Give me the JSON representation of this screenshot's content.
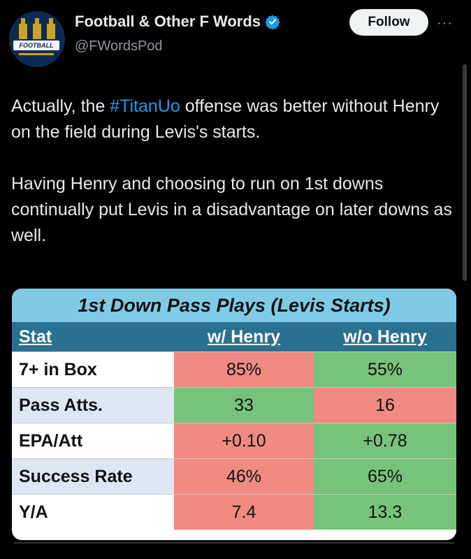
{
  "header": {
    "display_name": "Football & Other F Words",
    "handle": "@FWordsPod",
    "follow_label": "Follow",
    "more_label": "···",
    "avatar_banner": "FOOTBALL"
  },
  "tweet": {
    "line1_pre": "Actually, the ",
    "hashtag": "#TitanUo",
    "line1_post": " offense was better without Henry on the field during Levis's starts.",
    "paragraph2": "Having Henry and choosing to run on 1st downs continually put Levis in a disadvantage on later downs as well."
  },
  "table": {
    "title": "1st Down Pass Plays (Levis Starts)",
    "headers": [
      "Stat",
      "w/ Henry",
      "w/o Henry"
    ],
    "rows": [
      {
        "stat": "7+ in Box",
        "with": "85%",
        "without": "55%",
        "with_color": "red",
        "without_color": "green"
      },
      {
        "stat": "Pass Atts.",
        "with": "33",
        "without": "16",
        "with_color": "green",
        "without_color": "red"
      },
      {
        "stat": "EPA/Att",
        "with": "+0.10",
        "without": "+0.78",
        "with_color": "red",
        "without_color": "green"
      },
      {
        "stat": "Success Rate",
        "with": "46%",
        "without": "65%",
        "with_color": "red",
        "without_color": "green"
      },
      {
        "stat": "Y/A",
        "with": "7.4",
        "without": "13.3",
        "with_color": "red",
        "without_color": "green"
      }
    ]
  },
  "colors": {
    "background": "#000000",
    "hashtag": "#1d9bf0",
    "title_bar": "#7fcbe6",
    "header_bar": "#2a7090",
    "red_cell": "#f08a82",
    "green_cell": "#78c37c"
  }
}
